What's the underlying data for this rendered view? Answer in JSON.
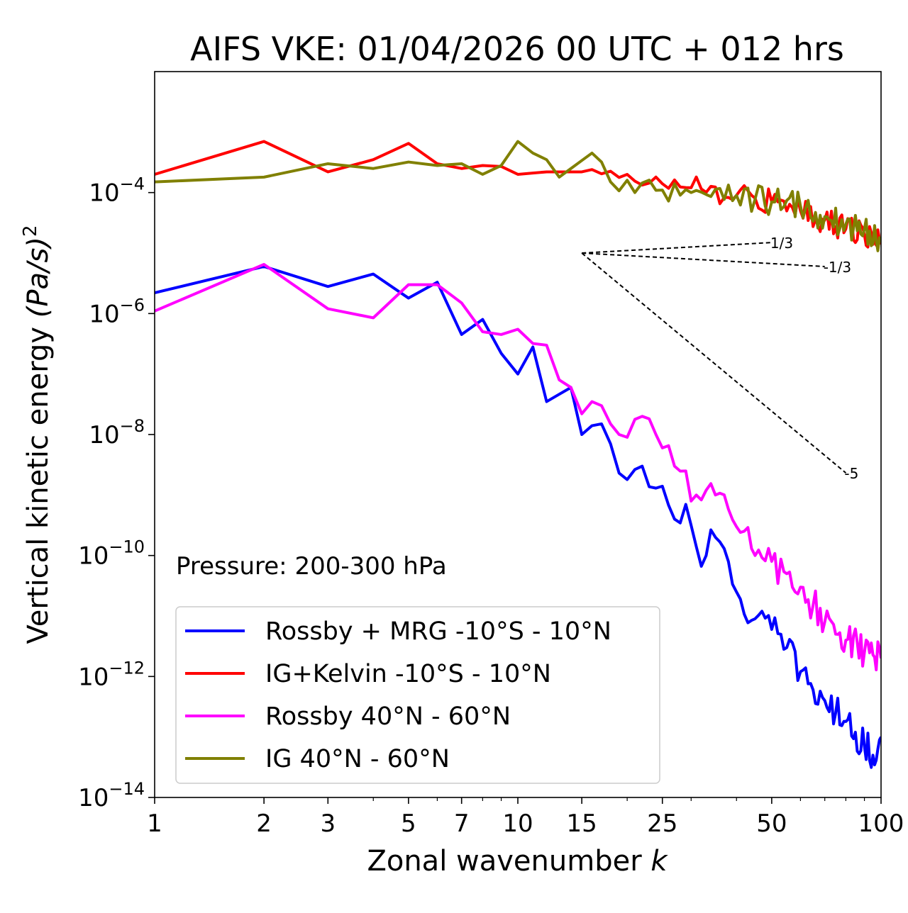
{
  "chart_data": {
    "type": "line",
    "title": "AIFS VKE: 01/04/2026 00 UTC + 012 hrs",
    "xlabel": "Zonal wavenumber",
    "xlabel_var": "k",
    "ylabel": "Vertical kinetic energy",
    "ylabel_units": "(Pa/s)",
    "ylabel_exp": "2",
    "xscale": "log",
    "yscale": "log",
    "xlim": [
      1,
      100
    ],
    "ylim": [
      1e-14,
      0.01
    ],
    "x_ticks": [
      1,
      2,
      3,
      5,
      7,
      10,
      15,
      25,
      50,
      100
    ],
    "x_tick_labels": [
      "1",
      "2",
      "3",
      "5",
      "7",
      "10",
      "15",
      "25",
      "50",
      "100"
    ],
    "y_ticks": [
      {
        "value": 0.0001,
        "base": "10",
        "exp": "−4"
      },
      {
        "value": 1e-06,
        "base": "10",
        "exp": "−6"
      },
      {
        "value": 1e-08,
        "base": "10",
        "exp": "−8"
      },
      {
        "value": 1e-10,
        "base": "10",
        "exp": "−10"
      },
      {
        "value": 1e-12,
        "base": "10",
        "exp": "−12"
      },
      {
        "value": 1e-14,
        "base": "10",
        "exp": "−14"
      }
    ],
    "annotation": "Pressure: 200-300 hPa",
    "legend_position": "lower-left",
    "series": [
      {
        "name": "Rossby + MRG -10°S - 10°N",
        "color": "#0000ff",
        "knots": [
          [
            1,
            2.2e-06
          ],
          [
            2,
            6e-06
          ],
          [
            3,
            2.8e-06
          ],
          [
            4,
            4.5e-06
          ],
          [
            5,
            1.8e-06
          ],
          [
            6,
            3.3e-06
          ],
          [
            7,
            4.5e-07
          ],
          [
            8,
            8e-07
          ],
          [
            9,
            2.2e-07
          ],
          [
            10,
            1e-07
          ],
          [
            11,
            2.8e-07
          ],
          [
            12,
            3.5e-08
          ],
          [
            14,
            6e-08
          ],
          [
            15,
            1e-08
          ],
          [
            16,
            1.4e-08
          ],
          [
            17,
            1.5e-08
          ],
          [
            18,
            7e-09
          ],
          [
            19,
            2.3e-09
          ],
          [
            20,
            1.8e-09
          ],
          [
            22,
            3e-09
          ],
          [
            24,
            1.3e-09
          ],
          [
            25,
            1.4e-09
          ],
          [
            27,
            4e-10
          ],
          [
            29,
            7e-10
          ],
          [
            31,
            1.4e-10
          ],
          [
            33,
            1e-10
          ],
          [
            35,
            2e-10
          ],
          [
            40,
            2.5e-11
          ],
          [
            45,
            9e-12
          ],
          [
            50,
            6e-12
          ],
          [
            55,
            3e-12
          ],
          [
            60,
            1.2e-12
          ],
          [
            65,
            6e-13
          ],
          [
            70,
            4e-13
          ],
          [
            75,
            2.5e-13
          ],
          [
            80,
            1.8e-13
          ],
          [
            85,
            1.2e-13
          ],
          [
            90,
            7e-14
          ],
          [
            95,
            5e-14
          ],
          [
            100,
            1e-13
          ]
        ],
        "noise": 0.28
      },
      {
        "name": "IG+Kelvin -10°S - 10°N",
        "color": "#ff0000",
        "knots": [
          [
            1,
            0.0002
          ],
          [
            2,
            0.0007
          ],
          [
            3,
            0.00022
          ],
          [
            4,
            0.00035
          ],
          [
            5,
            0.00065
          ],
          [
            6,
            0.0003
          ],
          [
            7,
            0.00025
          ],
          [
            8,
            0.00028
          ],
          [
            9,
            0.00027
          ],
          [
            10,
            0.0002
          ],
          [
            12,
            0.00022
          ],
          [
            15,
            0.00022
          ],
          [
            20,
            0.0002
          ],
          [
            25,
            0.00014
          ],
          [
            30,
            0.00012
          ],
          [
            40,
            9e-05
          ],
          [
            50,
            7e-05
          ],
          [
            60,
            5e-05
          ],
          [
            70,
            3.5e-05
          ],
          [
            80,
            2.5e-05
          ],
          [
            90,
            2e-05
          ],
          [
            100,
            1.4e-05
          ]
        ],
        "noise": 0.22
      },
      {
        "name": "Rossby 40°N - 60°N",
        "color": "#ff00ff",
        "knots": [
          [
            1,
            1.1e-06
          ],
          [
            2,
            6.5e-06
          ],
          [
            3,
            1.2e-06
          ],
          [
            4,
            8.5e-07
          ],
          [
            5,
            3e-06
          ],
          [
            6,
            3e-06
          ],
          [
            7,
            1.5e-06
          ],
          [
            8,
            5e-07
          ],
          [
            9,
            4.5e-07
          ],
          [
            10,
            5.5e-07
          ],
          [
            11,
            3.2e-07
          ],
          [
            12,
            3e-07
          ],
          [
            13,
            8e-08
          ],
          [
            14,
            6e-08
          ],
          [
            15,
            2.2e-08
          ],
          [
            16,
            3.5e-08
          ],
          [
            17,
            3e-08
          ],
          [
            18,
            1.5e-08
          ],
          [
            19,
            1e-08
          ],
          [
            20,
            9e-09
          ],
          [
            22,
            2e-08
          ],
          [
            24,
            1e-08
          ],
          [
            25,
            6e-09
          ],
          [
            27,
            3e-09
          ],
          [
            29,
            2.5e-09
          ],
          [
            31,
            1e-09
          ],
          [
            33,
            1.2e-09
          ],
          [
            35,
            1e-09
          ],
          [
            40,
            3e-10
          ],
          [
            45,
            1e-10
          ],
          [
            50,
            8e-11
          ],
          [
            55,
            5e-11
          ],
          [
            60,
            3e-11
          ],
          [
            65,
            1.5e-11
          ],
          [
            70,
            8e-12
          ],
          [
            75,
            5e-12
          ],
          [
            80,
            4e-12
          ],
          [
            90,
            2.5e-12
          ],
          [
            100,
            2e-12
          ]
        ],
        "noise": 0.3
      },
      {
        "name": "IG 40°N - 60°N",
        "color": "#808000",
        "knots": [
          [
            1,
            0.00015
          ],
          [
            2,
            0.00018
          ],
          [
            3,
            0.0003
          ],
          [
            4,
            0.00025
          ],
          [
            5,
            0.00032
          ],
          [
            6,
            0.00028
          ],
          [
            7,
            0.0003
          ],
          [
            8,
            0.0002
          ],
          [
            9,
            0.00028
          ],
          [
            10,
            0.0007
          ],
          [
            11,
            0.00045
          ],
          [
            12,
            0.00035
          ],
          [
            13,
            0.00018
          ],
          [
            14,
            0.00025
          ],
          [
            16,
            0.00045
          ],
          [
            18,
            0.00015
          ],
          [
            20,
            0.00016
          ],
          [
            25,
            0.00011
          ],
          [
            30,
            0.0001
          ],
          [
            40,
            9e-05
          ],
          [
            50,
            7e-05
          ],
          [
            60,
            6e-05
          ],
          [
            70,
            4e-05
          ],
          [
            80,
            3e-05
          ],
          [
            90,
            2.5e-05
          ],
          [
            100,
            1.5e-05
          ]
        ],
        "noise": 0.25
      }
    ],
    "reference_lines": [
      {
        "label": "1/3",
        "x0": 15,
        "y0": 1e-05,
        "x1": 50,
        "slope": 0.3333
      },
      {
        "label": "-1/3",
        "x0": 15,
        "y0": 1e-05,
        "x1": 70,
        "slope": -0.3333
      },
      {
        "label": "-5",
        "x0": 15,
        "y0": 1e-05,
        "x1": 80,
        "slope": -5
      }
    ]
  }
}
